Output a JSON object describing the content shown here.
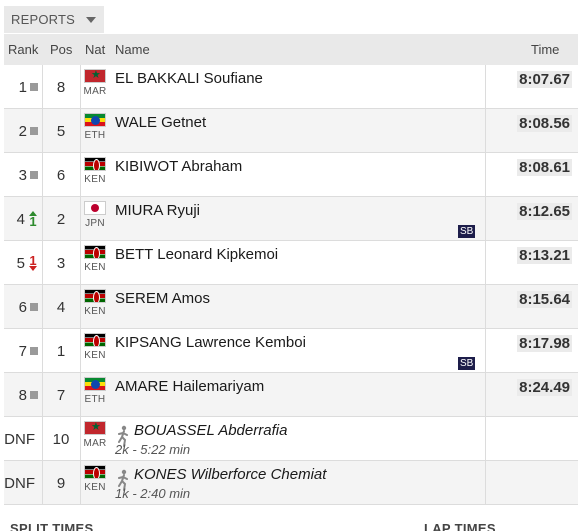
{
  "reports_tab": {
    "label": "REPORTS",
    "icon": "chevron-down-icon"
  },
  "columns": {
    "rank": "Rank",
    "pos": "Pos",
    "nat": "Nat",
    "name": "Name",
    "time": "Time"
  },
  "rows": [
    {
      "rank": "1",
      "move": "same",
      "move_value": "",
      "pos": "8",
      "nat": "MAR",
      "name": "EL BAKKALI Soufiane",
      "time": "8:07.67",
      "note": ""
    },
    {
      "rank": "2",
      "move": "same",
      "move_value": "",
      "pos": "5",
      "nat": "ETH",
      "name": "WALE Getnet",
      "time": "8:08.56",
      "note": ""
    },
    {
      "rank": "3",
      "move": "same",
      "move_value": "",
      "pos": "6",
      "nat": "KEN",
      "name": "KIBIWOT Abraham",
      "time": "8:08.61",
      "note": ""
    },
    {
      "rank": "4",
      "move": "up",
      "move_value": "1",
      "pos": "2",
      "nat": "JPN",
      "name": "MIURA Ryuji",
      "time": "8:12.65",
      "note": "SB"
    },
    {
      "rank": "5",
      "move": "down",
      "move_value": "1",
      "pos": "3",
      "nat": "KEN",
      "name": "BETT Leonard Kipkemoi",
      "time": "8:13.21",
      "note": ""
    },
    {
      "rank": "6",
      "move": "same",
      "move_value": "",
      "pos": "4",
      "nat": "KEN",
      "name": "SEREM Amos",
      "time": "8:15.64",
      "note": ""
    },
    {
      "rank": "7",
      "move": "same",
      "move_value": "",
      "pos": "1",
      "nat": "KEN",
      "name": "KIPSANG Lawrence Kemboi",
      "time": "8:17.98",
      "note": "SB"
    },
    {
      "rank": "8",
      "move": "same",
      "move_value": "",
      "pos": "7",
      "nat": "ETH",
      "name": "AMARE Hailemariyam",
      "time": "8:24.49",
      "note": ""
    },
    {
      "rank": "DNF",
      "move": "none",
      "move_value": "",
      "pos": "10",
      "nat": "MAR",
      "name": "BOUASSEL Abderrafia",
      "time": "",
      "note": "",
      "dnf_detail": "2k - 5:22 min"
    },
    {
      "rank": "DNF",
      "move": "none",
      "move_value": "",
      "pos": "9",
      "nat": "KEN",
      "name": "KONES Wilberforce Chemiat",
      "time": "",
      "note": "",
      "dnf_detail": "1k - 2:40 min"
    }
  ],
  "footer": {
    "split_times": "SPLIT TIMES",
    "lap_times": "LAP TIMES"
  }
}
